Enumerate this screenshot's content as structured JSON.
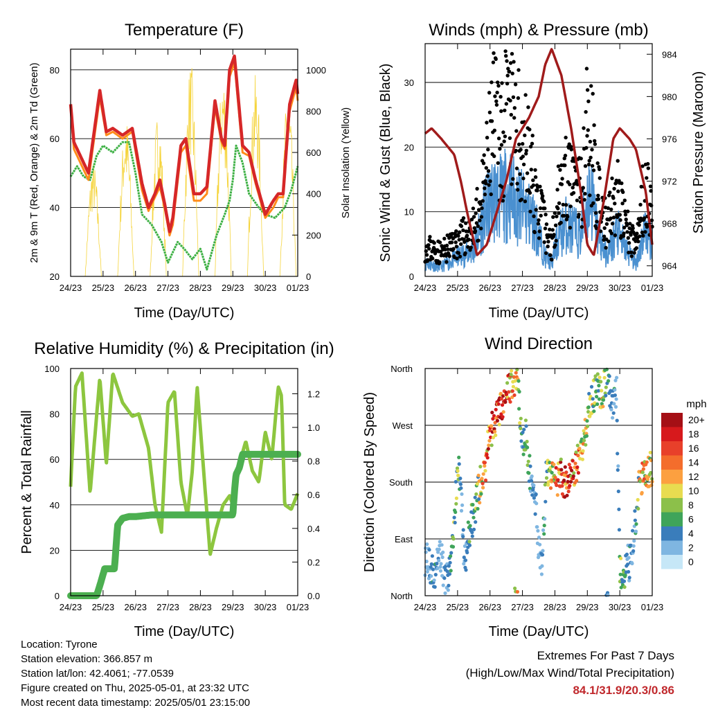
{
  "chart_data": [
    {
      "type": "line",
      "title": "Temperature (F)",
      "xlabel": "Time (Day/UTC)",
      "ylabel": "2m & 9m T (Red, Orange) & 2m Td (Green)",
      "ylabel_right": "Solar Insolation (Yellow)",
      "x_ticks": [
        "24/23",
        "25/23",
        "26/23",
        "27/23",
        "28/23",
        "29/23",
        "30/23",
        "01/23"
      ],
      "ylim": [
        20,
        86
      ],
      "y_ticks": [
        20,
        40,
        60,
        80
      ],
      "ylim_right": [
        0,
        1100
      ],
      "y_ticks_right": [
        0,
        200,
        400,
        600,
        800,
        1000
      ],
      "grid": "horizontal",
      "series": [
        {
          "color": "#d62728",
          "days": [
            0,
            0.1,
            0.3,
            0.55,
            0.9,
            1.1,
            1.3,
            1.6,
            1.9,
            2.2,
            2.4,
            2.6,
            2.75,
            2.9,
            3.05,
            3.15,
            3.4,
            3.55,
            3.8,
            4.0,
            4.2,
            4.45,
            4.65,
            4.75,
            4.9,
            5.05,
            5.3,
            5.5,
            5.7,
            6.0,
            6.25,
            6.4,
            6.55,
            6.75,
            6.95,
            7.0
          ],
          "values": [
            70,
            59,
            55,
            50,
            74,
            62,
            63,
            61,
            63,
            47,
            40,
            44,
            48,
            41,
            33,
            37,
            58,
            60,
            44,
            44,
            46,
            71,
            60,
            58,
            80,
            84,
            58,
            56,
            48,
            38,
            42,
            44,
            44,
            70,
            77,
            73
          ]
        },
        {
          "color": "#ff8c1a",
          "days": [
            0,
            0.1,
            0.3,
            0.55,
            0.9,
            1.1,
            1.3,
            1.6,
            1.9,
            2.2,
            2.4,
            2.6,
            2.75,
            2.9,
            3.05,
            3.15,
            3.4,
            3.55,
            3.8,
            4.0,
            4.2,
            4.45,
            4.65,
            4.75,
            4.9,
            5.05,
            5.3,
            5.5,
            5.7,
            6.0,
            6.25,
            6.4,
            6.55,
            6.75,
            6.95,
            7.0
          ],
          "values": [
            69,
            57,
            53,
            48,
            72,
            61,
            62,
            60,
            62,
            45,
            39,
            43,
            46,
            40,
            31.9,
            35,
            56,
            58,
            42,
            42,
            44,
            69,
            59,
            57,
            78,
            82,
            56,
            55,
            47,
            37,
            40,
            43,
            43,
            68,
            75,
            71
          ]
        },
        {
          "color": "#3cb043",
          "days": [
            0,
            0.2,
            0.4,
            0.6,
            0.8,
            1.0,
            1.3,
            1.6,
            1.8,
            2.0,
            2.2,
            2.5,
            2.8,
            3.0,
            3.3,
            3.5,
            3.75,
            4.0,
            4.2,
            4.5,
            4.75,
            4.9,
            5.0,
            5.1,
            5.3,
            5.5,
            5.8,
            6.0,
            6.3,
            6.6,
            6.8,
            7.0
          ],
          "values": [
            49,
            52,
            49,
            48,
            55,
            58,
            56,
            59,
            59,
            50,
            38,
            35,
            30,
            24,
            30,
            28,
            25,
            28,
            22,
            32,
            38,
            42,
            48,
            58,
            53,
            44,
            40,
            38,
            37,
            40,
            45,
            52
          ]
        },
        {
          "color": "#f5d43c",
          "kind": "insolation",
          "values": [
            0,
            480,
            560,
            780,
            800,
            1040,
            1010,
            980,
            900,
            320,
            250,
            950
          ]
        }
      ]
    },
    {
      "type": "scatter",
      "title": "Winds (mph) & Pressure (mb)",
      "xlabel": "Time (Day/UTC)",
      "ylabel": "Sonic Wind & Gust (Blue, Black)",
      "ylabel_right": "Station Pressure (Maroon)",
      "x_ticks": [
        "24/23",
        "25/23",
        "26/23",
        "27/23",
        "28/23",
        "29/23",
        "30/23",
        "01/23"
      ],
      "ylim": [
        0,
        36
      ],
      "y_ticks": [
        0,
        10,
        20,
        30
      ],
      "ylim_right": [
        963,
        985
      ],
      "y_ticks_right": [
        964,
        968,
        972,
        976,
        980,
        984
      ],
      "grid": "horizontal",
      "gust": {
        "color": "#000000",
        "days": [
          0,
          0.5,
          1.0,
          1.5,
          1.8,
          2.1,
          2.35,
          2.6,
          2.85,
          3.1,
          3.4,
          3.7,
          3.9,
          4.1,
          4.35,
          4.6,
          4.8,
          4.95,
          5.1,
          5.3,
          5.6,
          5.9,
          6.2,
          6.5,
          6.75,
          7.0
        ],
        "values": [
          5,
          4,
          6,
          8,
          14,
          26,
          25,
          27,
          24,
          22,
          14,
          8,
          5,
          15,
          16,
          15,
          14,
          24,
          26,
          14,
          8,
          14,
          8,
          5,
          15,
          13
        ]
      },
      "wind": {
        "color": "#4a90d0",
        "days": [
          0,
          0.5,
          1.0,
          1.5,
          1.8,
          2.1,
          2.35,
          2.6,
          2.85,
          3.1,
          3.4,
          3.7,
          3.9,
          4.1,
          4.35,
          4.6,
          4.8,
          4.95,
          5.1,
          5.3,
          5.6,
          5.9,
          6.2,
          6.5,
          6.75,
          7.0
        ],
        "values": [
          2,
          1.5,
          3,
          4,
          9,
          12,
          12,
          13,
          11,
          10,
          8,
          3,
          2,
          6,
          8,
          7,
          6,
          11,
          13,
          7,
          3,
          7,
          4,
          2,
          7,
          6
        ]
      },
      "pressure": {
        "color": "#a01b1b",
        "days": [
          0,
          0.2,
          0.5,
          0.9,
          1.1,
          1.3,
          1.6,
          1.9,
          2.1,
          2.5,
          2.8,
          3.2,
          3.5,
          3.7,
          3.9,
          4.2,
          4.5,
          4.8,
          5.0,
          5.2,
          5.5,
          5.8,
          6.0,
          6.3,
          6.5,
          6.8,
          7.0
        ],
        "values": [
          976.5,
          977,
          976,
          974.5,
          972,
          969,
          965,
          966,
          968,
          972,
          976,
          978,
          980,
          983,
          984.5,
          982,
          977,
          971,
          966,
          965,
          970,
          976,
          977,
          976,
          975,
          971,
          966
        ]
      }
    },
    {
      "type": "line",
      "title": "Relative Humidity (%) & Precipitation (in)",
      "xlabel": "Time (Day/UTC)",
      "ylabel": "Percent & Total Rainfall",
      "x_ticks": [
        "24/23",
        "25/23",
        "26/23",
        "27/23",
        "28/23",
        "29/23",
        "30/23",
        "01/23"
      ],
      "ylim": [
        0,
        100
      ],
      "y_ticks": [
        0,
        20,
        40,
        60,
        80,
        100
      ],
      "ylim_right": [
        0,
        1.35
      ],
      "y_ticks_right": [
        "0.0",
        "0.2",
        "0.4",
        "0.6",
        "0.8",
        "1.0",
        "1.2"
      ],
      "grid": "horizontal",
      "series": [
        {
          "name": "rh",
          "color": "#8dc63f",
          "days": [
            0,
            0.15,
            0.35,
            0.6,
            0.9,
            1.1,
            1.3,
            1.6,
            1.9,
            2.1,
            2.4,
            2.6,
            2.8,
            3.0,
            3.2,
            3.4,
            3.6,
            3.75,
            3.9,
            4.1,
            4.3,
            4.5,
            4.7,
            4.9,
            5.0,
            5.2,
            5.4,
            5.6,
            5.8,
            6.0,
            6.2,
            6.4,
            6.5,
            6.6,
            6.8,
            7.0
          ],
          "values": [
            48,
            92,
            98,
            45,
            96,
            58,
            98,
            85,
            79,
            80,
            65,
            40,
            28,
            85,
            90,
            50,
            35,
            55,
            92,
            55,
            18,
            30,
            40,
            44,
            40,
            58,
            68,
            55,
            50,
            72,
            60,
            92,
            88,
            40,
            38,
            45
          ]
        },
        {
          "name": "precip",
          "color": "#4caf50",
          "days": [
            0,
            0.8,
            0.9,
            1.05,
            1.2,
            1.35,
            1.45,
            1.6,
            1.8,
            2.0,
            2.5,
            3.0,
            3.5,
            4.0,
            4.5,
            5.0,
            5.05,
            5.1,
            5.2,
            5.3,
            5.4,
            6.0,
            7.0
          ],
          "values": [
            0,
            0,
            0.06,
            0.16,
            0.16,
            0.16,
            0.42,
            0.46,
            0.47,
            0.47,
            0.48,
            0.48,
            0.48,
            0.48,
            0.48,
            0.48,
            0.62,
            0.72,
            0.76,
            0.84,
            0.84,
            0.84,
            0.84
          ]
        }
      ]
    },
    {
      "type": "scatter",
      "title": "Wind Direction",
      "xlabel": "Time (Day/UTC)",
      "ylabel": "Direction (Colored By Speed)",
      "x_ticks": [
        "24/23",
        "25/23",
        "26/23",
        "27/23",
        "28/23",
        "29/23",
        "30/23",
        "01/23"
      ],
      "y_ticks": [
        "North",
        "East",
        "South",
        "West",
        "North"
      ],
      "ylim": [
        0,
        360
      ],
      "grid": "horizontal",
      "colorbar": {
        "title": "mph",
        "labels": [
          "20+",
          "18",
          "16",
          "14",
          "12",
          "10",
          "8",
          "6",
          "4",
          "2",
          "0"
        ],
        "colors": [
          "#a50f15",
          "#d7191c",
          "#e8402a",
          "#f46d2c",
          "#fca040",
          "#e8dc50",
          "#8cc04a",
          "#3fa45a",
          "#3a7dbb",
          "#7fb6e1",
          "#c6e7f7"
        ]
      },
      "days": [
        0.05,
        0.15,
        0.3,
        0.45,
        0.6,
        0.8,
        1.0,
        1.1,
        1.2,
        1.4,
        1.55,
        1.7,
        1.85,
        2.0,
        2.1,
        2.3,
        2.45,
        2.6,
        2.7,
        2.85,
        3.0,
        3.1,
        3.2,
        3.35,
        3.5,
        3.6,
        3.75,
        3.9,
        4.0,
        4.2,
        4.3,
        4.45,
        4.6,
        4.75,
        4.9,
        5.05,
        5.15,
        5.3,
        5.45,
        5.6,
        5.75,
        5.9,
        6.0,
        6.1,
        6.2,
        6.3,
        6.45,
        6.6,
        6.75,
        6.9
      ],
      "values": [
        60,
        45,
        30,
        70,
        30,
        40,
        200,
        190,
        50,
        110,
        140,
        180,
        200,
        260,
        270,
        290,
        320,
        330,
        340,
        350,
        230,
        260,
        200,
        180,
        80,
        60,
        200,
        190,
        180,
        190,
        180,
        190,
        200,
        220,
        240,
        300,
        310,
        330,
        320,
        350,
        300,
        330,
        40,
        20,
        60,
        50,
        100,
        180,
        190,
        200
      ],
      "speeds": [
        2,
        3,
        4,
        2,
        3,
        5,
        8,
        4,
        3,
        6,
        6,
        9,
        12,
        14,
        17,
        18,
        16,
        14,
        12,
        10,
        4,
        6,
        5,
        3,
        2,
        3,
        7,
        10,
        12,
        16,
        18,
        15,
        14,
        12,
        10,
        6,
        8,
        6,
        10,
        5,
        4,
        3,
        6,
        8,
        3,
        4,
        2,
        9,
        12,
        10
      ]
    }
  ],
  "info": {
    "location": "Location: Tyrone",
    "elevation": "Station elevation: 366.857 m",
    "latlon": "Station lat/lon: 42.4061; -77.0539",
    "created": "Figure created on Thu, 2025-05-01, at 23:32 UTC",
    "recent": "Most recent data timestamp: 2025/05/01 23:15:00"
  },
  "extremes": {
    "title": "Extremes For Past 7 Days",
    "subtitle": "(High/Low/Max Wind/Total Precipitation)",
    "values": "84.1/31.9/20.3/0.86"
  }
}
